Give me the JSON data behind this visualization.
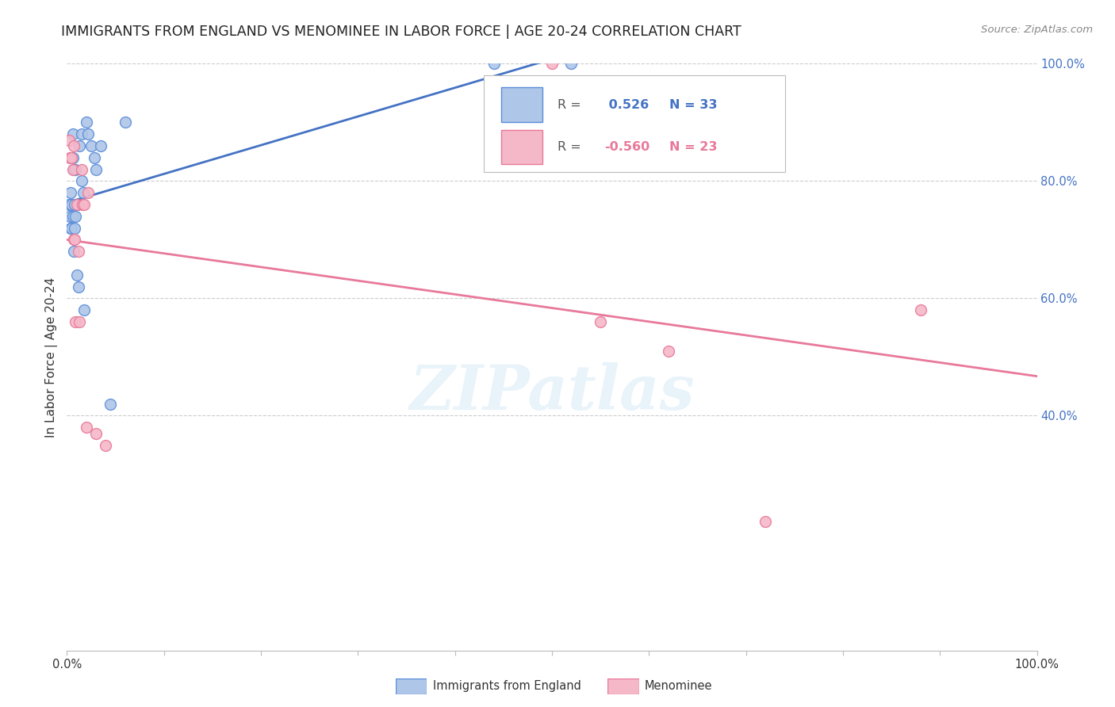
{
  "title": "IMMIGRANTS FROM ENGLAND VS MENOMINEE IN LABOR FORCE | AGE 20-24 CORRELATION CHART",
  "source": "Source: ZipAtlas.com",
  "ylabel": "In Labor Force | Age 20-24",
  "watermark": "ZIPatlas",
  "legend_eng_R": " 0.526",
  "legend_eng_N": "33",
  "legend_men_R": "-0.560",
  "legend_men_N": "23",
  "xlim": [
    0.0,
    1.0
  ],
  "ylim": [
    0.0,
    1.0
  ],
  "yticks": [
    0.4,
    0.6,
    0.8,
    1.0
  ],
  "ytick_labels": [
    "40.0%",
    "60.0%",
    "80.0%",
    "100.0%"
  ],
  "xticks": [
    0.0,
    0.1,
    0.2,
    0.3,
    0.4,
    0.5,
    0.6,
    0.7,
    0.8,
    0.9,
    1.0
  ],
  "xtick_labels": [
    "0.0%",
    "",
    "",
    "",
    "",
    "",
    "",
    "",
    "",
    "",
    "100.0%"
  ],
  "eng_color": "#aec6e8",
  "men_color": "#f5b8c8",
  "eng_edge_color": "#5b8dd9",
  "men_edge_color": "#e8799a",
  "eng_line_color": "#4472c4",
  "men_line_color": "#e8799a",
  "background_color": "#ffffff",
  "grid_color": "#cccccc",
  "england_x": [
    0.002,
    0.003,
    0.004,
    0.004,
    0.005,
    0.005,
    0.006,
    0.006,
    0.006,
    0.007,
    0.007,
    0.008,
    0.008,
    0.009,
    0.009,
    0.01,
    0.011,
    0.012,
    0.013,
    0.015,
    0.015,
    0.017,
    0.018,
    0.02,
    0.022,
    0.025,
    0.028,
    0.03,
    0.035,
    0.045,
    0.06,
    0.44,
    0.52
  ],
  "england_y": [
    0.76,
    0.74,
    0.78,
    0.72,
    0.76,
    0.72,
    0.88,
    0.84,
    0.74,
    0.82,
    0.68,
    0.76,
    0.72,
    0.82,
    0.74,
    0.64,
    0.76,
    0.62,
    0.86,
    0.88,
    0.8,
    0.78,
    0.58,
    0.9,
    0.88,
    0.86,
    0.84,
    0.82,
    0.86,
    0.42,
    0.9,
    1.0,
    1.0
  ],
  "menominee_x": [
    0.002,
    0.003,
    0.005,
    0.006,
    0.007,
    0.007,
    0.008,
    0.009,
    0.01,
    0.012,
    0.013,
    0.015,
    0.016,
    0.018,
    0.02,
    0.022,
    0.03,
    0.04,
    0.5,
    0.55,
    0.62,
    0.72,
    0.88
  ],
  "menominee_y": [
    0.87,
    0.84,
    0.84,
    0.82,
    0.86,
    0.7,
    0.7,
    0.56,
    0.76,
    0.68,
    0.56,
    0.82,
    0.76,
    0.76,
    0.38,
    0.78,
    0.37,
    0.35,
    1.0,
    0.56,
    0.51,
    0.22,
    0.58
  ],
  "title_fontsize": 12.5,
  "axis_label_fontsize": 11,
  "tick_fontsize": 10.5,
  "legend_fontsize": 11.5,
  "source_fontsize": 9.5
}
